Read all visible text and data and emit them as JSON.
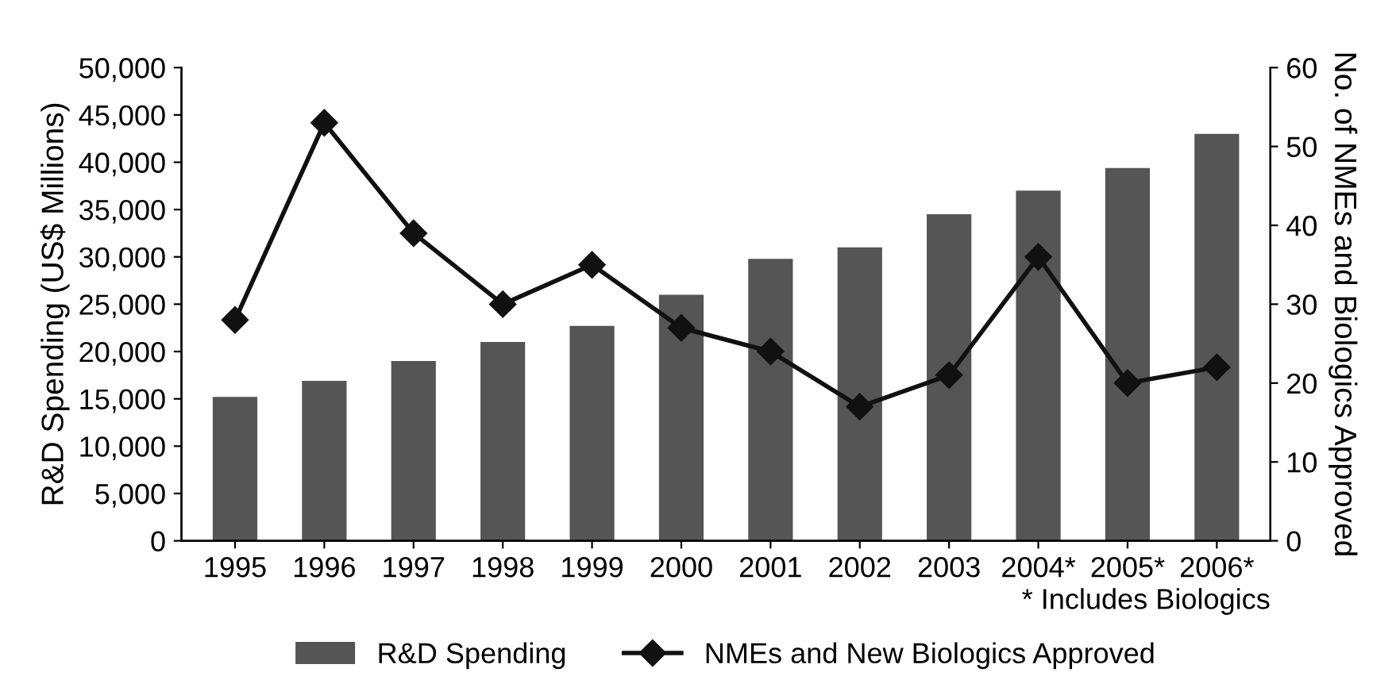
{
  "chart_data": {
    "type": "bar",
    "ylabel": "R&D Spending (US$ Millions)",
    "y2label": "No. of NMEs and Biologics Approved",
    "categories": [
      "1995",
      "1996",
      "1997",
      "1998",
      "1999",
      "2000",
      "2001",
      "2002",
      "2003",
      "2004*",
      "2005*",
      "2006*"
    ],
    "series": [
      {
        "name": "R&D Spending",
        "color": "#555555",
        "values": [
          15200,
          16900,
          19000,
          21000,
          22700,
          26000,
          29800,
          31000,
          34500,
          37000,
          39400,
          43000
        ]
      },
      {
        "name": "NMEs and New Biologics Approved",
        "type": "line",
        "axis": "y2",
        "color": "#111111",
        "marker": "diamond",
        "values": [
          28,
          53,
          39,
          30,
          35,
          27,
          24,
          17,
          21,
          36,
          20,
          22
        ]
      }
    ],
    "ylim": [
      0,
      50000
    ],
    "yticks": [
      {
        "value": 0,
        "label": "0"
      },
      {
        "value": 5000,
        "label": "5,000"
      },
      {
        "value": 10000,
        "label": "10,000"
      },
      {
        "value": 15000,
        "label": "15,000"
      },
      {
        "value": 20000,
        "label": "20,000"
      },
      {
        "value": 25000,
        "label": "25,000"
      },
      {
        "value": 30000,
        "label": "30,000"
      },
      {
        "value": 35000,
        "label": "35,000"
      },
      {
        "value": 40000,
        "label": "40,000"
      },
      {
        "value": 45000,
        "label": "45,000"
      },
      {
        "value": 50000,
        "label": "50,000"
      }
    ],
    "y2lim": [
      0,
      60
    ],
    "y2ticks": [
      0,
      10,
      20,
      30,
      40,
      50,
      60
    ],
    "annotations": [
      "* Includes Biologics"
    ],
    "legend": "bottom",
    "grid": false
  }
}
